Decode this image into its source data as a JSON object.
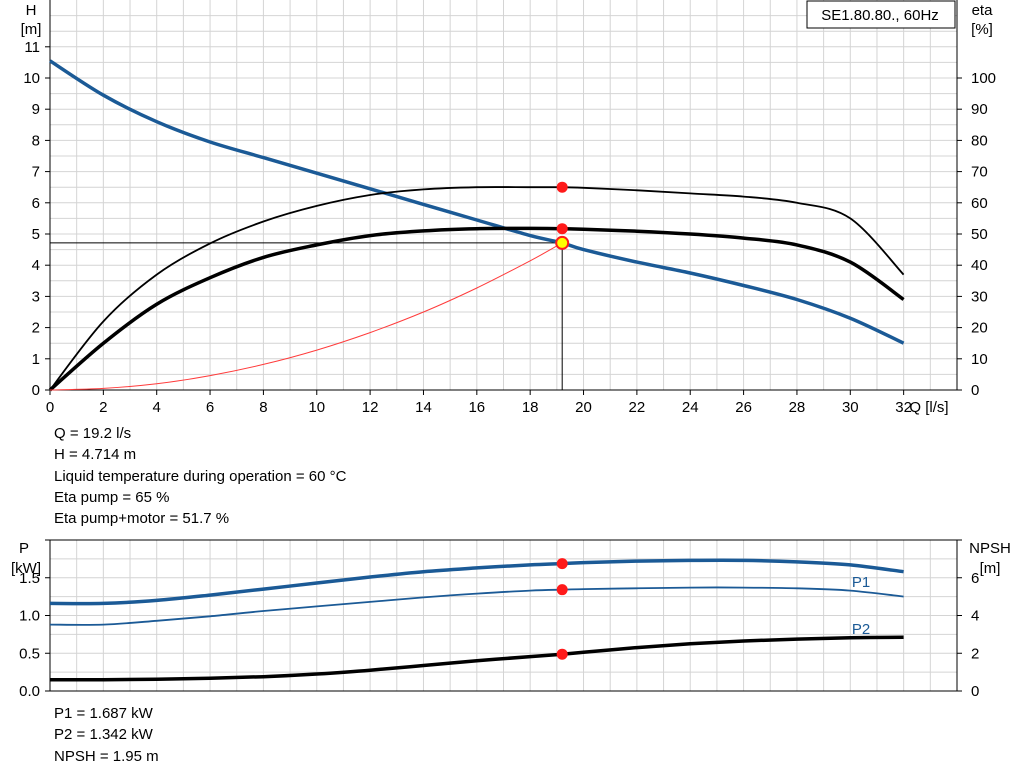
{
  "chart_data": [
    {
      "type": "line",
      "title": "SE1.80.80., 60Hz",
      "xlabel": "Q [l/s]",
      "ylabel_left": "H",
      "ylabel_left_unit": "[m]",
      "ylabel_right": "eta",
      "ylabel_right_unit": "[%]",
      "xlim": [
        0,
        34
      ],
      "ylim_left": [
        0,
        12.5
      ],
      "ylim_right": [
        0,
        125
      ],
      "x_ticks": [
        0,
        2,
        4,
        6,
        8,
        10,
        12,
        14,
        16,
        18,
        20,
        22,
        24,
        26,
        28,
        30,
        32
      ],
      "y_left_ticks": [
        0,
        1,
        2,
        3,
        4,
        5,
        6,
        7,
        8,
        9,
        10,
        11
      ],
      "y_right_ticks": [
        0,
        10,
        20,
        30,
        40,
        50,
        60,
        70,
        80,
        90,
        100
      ],
      "grid": true,
      "series": [
        {
          "name": "H",
          "axis": "left",
          "color": "#1b5a96",
          "x": [
            0,
            2,
            4,
            6,
            8,
            10,
            12,
            14,
            16,
            18,
            19.2,
            20,
            22,
            24,
            26,
            28,
            30,
            32
          ],
          "y": [
            10.55,
            9.45,
            8.6,
            7.95,
            7.45,
            6.95,
            6.45,
            5.95,
            5.45,
            4.95,
            4.714,
            4.5,
            4.1,
            3.75,
            3.35,
            2.9,
            2.3,
            1.5
          ]
        },
        {
          "name": "Eta pump",
          "axis": "right",
          "color": "#000000",
          "x": [
            0,
            2,
            4,
            6,
            8,
            10,
            12,
            14,
            16,
            18,
            19.2,
            20,
            22,
            24,
            26,
            28,
            30,
            32
          ],
          "y": [
            0,
            22,
            37,
            47,
            54,
            59,
            62.5,
            64.3,
            65,
            65,
            65,
            64.8,
            64,
            63,
            62,
            60,
            55,
            37
          ]
        },
        {
          "name": "Eta pump+motor",
          "axis": "right",
          "color": "#000000",
          "x": [
            0,
            2,
            4,
            6,
            8,
            10,
            12,
            14,
            16,
            18,
            19.2,
            20,
            22,
            24,
            26,
            28,
            30,
            32
          ],
          "y": [
            0,
            15,
            27.5,
            36,
            42.5,
            46.5,
            49.5,
            51,
            51.7,
            51.8,
            51.7,
            51.5,
            50.9,
            50,
            48.7,
            46.5,
            41,
            29
          ]
        },
        {
          "name": "System curve",
          "axis": "left",
          "color": "#ff3b3b",
          "x": [
            0,
            2,
            4,
            6,
            8,
            10,
            12,
            14,
            16,
            18,
            19.2
          ],
          "y": [
            0,
            0.05,
            0.2,
            0.46,
            0.82,
            1.28,
            1.84,
            2.5,
            3.27,
            4.14,
            4.714
          ]
        }
      ],
      "operating_point": {
        "Q": 19.2,
        "H": 4.714,
        "eta_pump": 65,
        "eta_pump_motor": 51.7
      }
    },
    {
      "type": "line",
      "ylabel_left": "P",
      "ylabel_left_unit": "[kW]",
      "ylabel_right": "NPSH",
      "ylabel_right_unit": "[m]",
      "xlim": [
        0,
        34
      ],
      "ylim_left": [
        0,
        2.0
      ],
      "ylim_right": [
        0,
        8
      ],
      "y_left_ticks": [
        0.0,
        0.5,
        1.0,
        1.5
      ],
      "y_left_tick_labels": [
        "0.0",
        "0.5",
        "1.0",
        "1.5"
      ],
      "y_right_ticks": [
        0,
        2,
        4,
        6
      ],
      "grid": true,
      "series": [
        {
          "name": "P1",
          "axis": "left",
          "color": "#1b5a96",
          "x": [
            0,
            2,
            4,
            6,
            8,
            10,
            12,
            14,
            16,
            18,
            19.2,
            20,
            22,
            24,
            26,
            28,
            30,
            32
          ],
          "y": [
            1.16,
            1.16,
            1.2,
            1.27,
            1.35,
            1.43,
            1.51,
            1.58,
            1.63,
            1.67,
            1.687,
            1.7,
            1.72,
            1.73,
            1.73,
            1.71,
            1.67,
            1.58
          ]
        },
        {
          "name": "P2",
          "axis": "left",
          "color": "#1b5a96",
          "x": [
            0,
            2,
            4,
            6,
            8,
            10,
            12,
            14,
            16,
            18,
            19.2,
            20,
            22,
            24,
            26,
            28,
            30,
            32
          ],
          "y": [
            0.88,
            0.88,
            0.93,
            0.99,
            1.06,
            1.12,
            1.18,
            1.24,
            1.29,
            1.33,
            1.342,
            1.35,
            1.36,
            1.37,
            1.37,
            1.36,
            1.33,
            1.25
          ]
        },
        {
          "name": "NPSH",
          "axis": "right",
          "color": "#000000",
          "x": [
            0,
            2,
            4,
            6,
            8,
            10,
            12,
            14,
            16,
            18,
            19.2,
            20,
            22,
            24,
            26,
            28,
            30,
            32
          ],
          "y": [
            0.6,
            0.6,
            0.62,
            0.68,
            0.76,
            0.9,
            1.1,
            1.35,
            1.6,
            1.82,
            1.95,
            2.05,
            2.3,
            2.5,
            2.65,
            2.75,
            2.82,
            2.85
          ]
        }
      ],
      "curve_labels": [
        "P1",
        "P2"
      ],
      "operating_point": {
        "P1": 1.687,
        "P2": 1.342,
        "NPSH": 1.95
      }
    }
  ],
  "readout_top": [
    "Q = 19.2 l/s",
    "H = 4.714 m",
    "Liquid temperature during operation = 60 °C",
    "Eta pump = 65 %",
    "Eta pump+motor = 51.7 %"
  ],
  "readout_bottom": [
    "P1 = 1.687 kW",
    "P2 = 1.342 kW",
    "NPSH = 1.95 m"
  ],
  "colors": {
    "h_curve": "#1b5a96",
    "power_curve": "#1b5a96",
    "eta_curve": "#000000",
    "system_curve": "#ff3b3b",
    "marker": "#ff1a1a",
    "duty_marker": "#ffff00",
    "grid": "#d4d4d4"
  }
}
